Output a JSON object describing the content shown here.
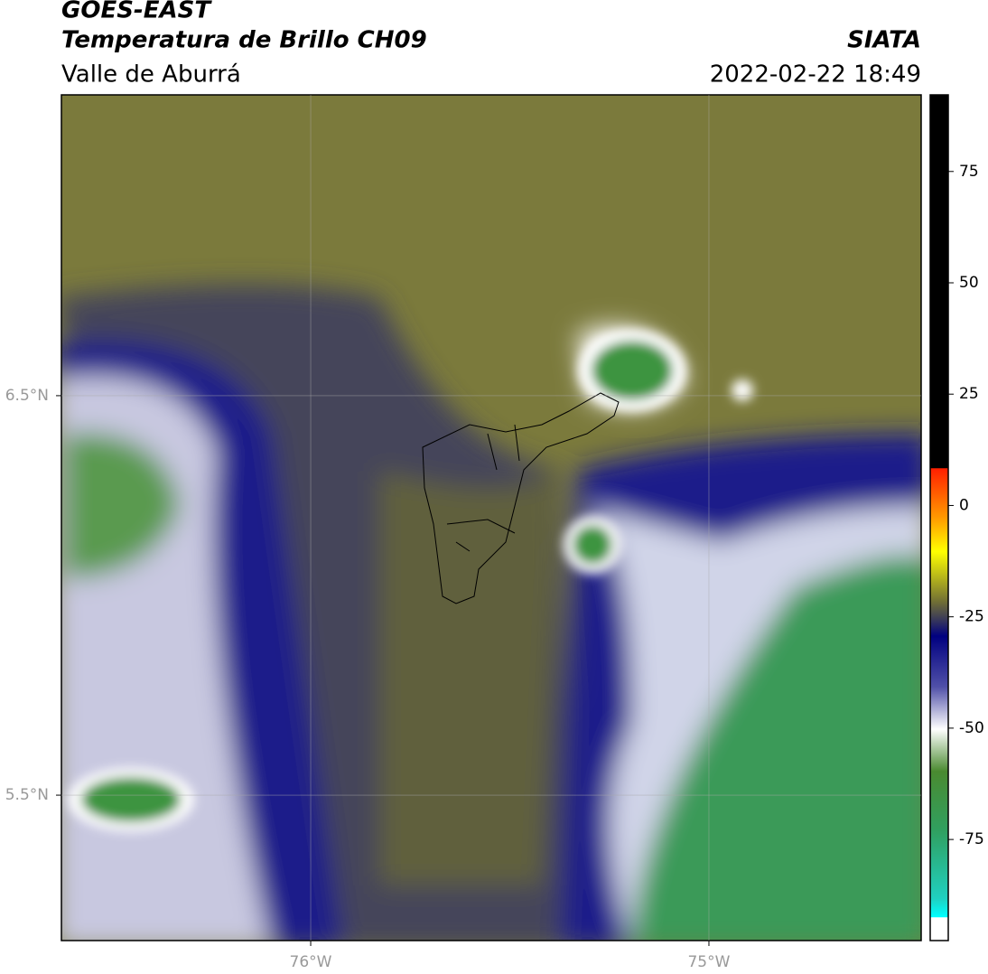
{
  "header": {
    "title": "GOES-EAST",
    "subtitle": "Temperatura de Brillo CH09",
    "region": "Valle de Aburrá",
    "source": "SIATA",
    "datetime": "2022-02-22 18:49"
  },
  "map": {
    "xlim": [
      -76.626,
      -74.467
    ],
    "ylim": [
      5.136,
      7.253
    ],
    "xticks": [
      {
        "value": -76,
        "label": "76°W"
      },
      {
        "value": -75,
        "label": "75°W"
      }
    ],
    "yticks": [
      {
        "value": 6.5,
        "label": "6.5°N"
      },
      {
        "value": 5.5,
        "label": "5.5°N"
      }
    ],
    "grid": true
  },
  "colorbar": {
    "ylim": [
      -97.7,
      92.2
    ],
    "yticks": [
      75,
      50,
      25,
      0,
      -25,
      -50,
      -75
    ]
  }
}
